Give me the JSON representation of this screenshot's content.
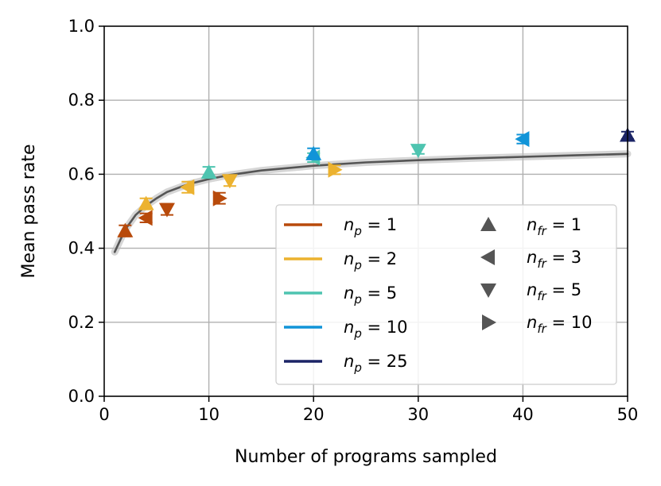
{
  "chart_data": {
    "type": "scatter",
    "title": "",
    "xlabel": "Number of programs sampled",
    "ylabel": "Mean pass rate",
    "xlim": [
      0,
      50
    ],
    "ylim": [
      0,
      1
    ],
    "xticks": [
      0,
      10,
      20,
      30,
      40,
      50
    ],
    "yticks": [
      0.0,
      0.2,
      0.4,
      0.6,
      0.8,
      1.0
    ],
    "xtick_labels": [
      "0",
      "10",
      "20",
      "30",
      "40",
      "50"
    ],
    "ytick_labels": [
      "0.0",
      "0.2",
      "0.4",
      "0.6",
      "0.8",
      "1.0"
    ],
    "grid": true,
    "legend_position": "lower-right",
    "fit_curve": {
      "color": "#555555",
      "band_color": "#bbbbbb",
      "points": [
        [
          1,
          0.39
        ],
        [
          1.5,
          0.42
        ],
        [
          2,
          0.45
        ],
        [
          3,
          0.49
        ],
        [
          4,
          0.515
        ],
        [
          5,
          0.535
        ],
        [
          6,
          0.552
        ],
        [
          8,
          0.573
        ],
        [
          10,
          0.587
        ],
        [
          12,
          0.598
        ],
        [
          15,
          0.61
        ],
        [
          20,
          0.623
        ],
        [
          25,
          0.632
        ],
        [
          30,
          0.638
        ],
        [
          35,
          0.643
        ],
        [
          40,
          0.647
        ],
        [
          45,
          0.651
        ],
        [
          50,
          0.655
        ]
      ]
    },
    "np_legend": [
      {
        "base": "n",
        "sub": "p",
        "eq": " = 1",
        "color": "#b84a0b"
      },
      {
        "base": "n",
        "sub": "p",
        "eq": " = 2",
        "color": "#ecb22f"
      },
      {
        "base": "n",
        "sub": "p",
        "eq": " = 5",
        "color": "#4ec4b0"
      },
      {
        "base": "n",
        "sub": "p",
        "eq": " = 10",
        "color": "#1194d8"
      },
      {
        "base": "n",
        "sub": "p",
        "eq": " = 25",
        "color": "#1b2466"
      }
    ],
    "nfr_legend": [
      {
        "base": "n",
        "sub": "fr",
        "eq": " = 1",
        "marker": "up"
      },
      {
        "base": "n",
        "sub": "fr",
        "eq": " = 3",
        "marker": "left"
      },
      {
        "base": "n",
        "sub": "fr",
        "eq": " = 5",
        "marker": "down"
      },
      {
        "base": "n",
        "sub": "fr",
        "eq": " = 10",
        "marker": "right"
      }
    ],
    "marker_legend_color": "#555555",
    "points": [
      {
        "np": 1,
        "nfr": 1,
        "x": 2,
        "y": 0.447,
        "err": 0.015,
        "color": "#b84a0b",
        "marker": "up"
      },
      {
        "np": 1,
        "nfr": 3,
        "x": 4,
        "y": 0.482,
        "err": 0.012,
        "color": "#b84a0b",
        "marker": "left"
      },
      {
        "np": 1,
        "nfr": 5,
        "x": 6,
        "y": 0.505,
        "err": 0.015,
        "color": "#b84a0b",
        "marker": "down"
      },
      {
        "np": 1,
        "nfr": 10,
        "x": 11,
        "y": 0.535,
        "err": 0.015,
        "color": "#b84a0b",
        "marker": "right"
      },
      {
        "np": 2,
        "nfr": 1,
        "x": 4,
        "y": 0.52,
        "err": 0.015,
        "color": "#ecb22f",
        "marker": "up"
      },
      {
        "np": 2,
        "nfr": 3,
        "x": 8,
        "y": 0.565,
        "err": 0.015,
        "color": "#ecb22f",
        "marker": "left"
      },
      {
        "np": 2,
        "nfr": 5,
        "x": 12,
        "y": 0.583,
        "err": 0.015,
        "color": "#ecb22f",
        "marker": "down"
      },
      {
        "np": 2,
        "nfr": 10,
        "x": 22,
        "y": 0.612,
        "err": 0.012,
        "color": "#ecb22f",
        "marker": "right"
      },
      {
        "np": 5,
        "nfr": 1,
        "x": 10,
        "y": 0.605,
        "err": 0.015,
        "color": "#4ec4b0",
        "marker": "up"
      },
      {
        "np": 5,
        "nfr": 3,
        "x": 20,
        "y": 0.645,
        "err": 0.012,
        "color": "#4ec4b0",
        "marker": "left"
      },
      {
        "np": 5,
        "nfr": 5,
        "x": 30,
        "y": 0.665,
        "err": 0.01,
        "color": "#4ec4b0",
        "marker": "down"
      },
      {
        "np": 10,
        "nfr": 1,
        "x": 20,
        "y": 0.655,
        "err": 0.015,
        "color": "#1194d8",
        "marker": "up"
      },
      {
        "np": 10,
        "nfr": 3,
        "x": 40,
        "y": 0.695,
        "err": 0.012,
        "color": "#1194d8",
        "marker": "left"
      },
      {
        "np": 25,
        "nfr": 1,
        "x": 50,
        "y": 0.705,
        "err": 0.01,
        "color": "#1b2466",
        "marker": "up"
      }
    ]
  }
}
